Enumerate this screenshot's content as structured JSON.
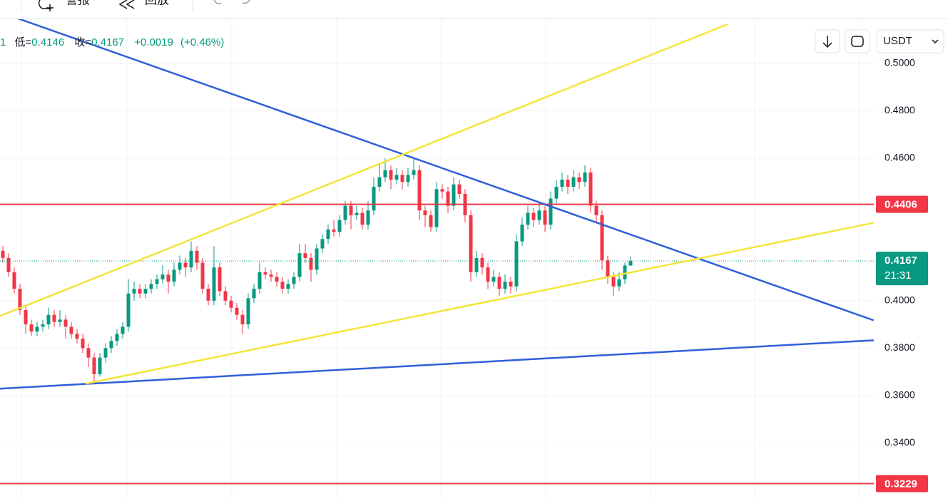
{
  "toolbar": {
    "items": [
      "警报",
      "回放"
    ]
  },
  "ohlc_legend": {
    "prefix": "1",
    "low_label": "低=",
    "low": "0.4146",
    "close_label": "收=",
    "close": "0.4167",
    "change": "+0.0019",
    "change_pct": "(+0.46%)"
  },
  "currency": "USDT",
  "chart_data": {
    "type": "candlestick",
    "up_color": "#089981",
    "down_color": "#f23645",
    "ylim": [
      0.3164,
      0.5186
    ],
    "yticks": [
      {
        "value": 0.5,
        "label": "0.5000"
      },
      {
        "value": 0.48,
        "label": "0.4800"
      },
      {
        "value": 0.46,
        "label": "0.4600"
      },
      {
        "value": 0.4,
        "label": "0.4000"
      },
      {
        "value": 0.38,
        "label": "0.3800"
      },
      {
        "value": 0.36,
        "label": "0.3600"
      },
      {
        "value": 0.34,
        "label": "0.3400"
      }
    ],
    "grid": true,
    "candles": [
      [
        0.421,
        0.423,
        0.416,
        0.418
      ],
      [
        0.418,
        0.42,
        0.41,
        0.412
      ],
      [
        0.412,
        0.414,
        0.403,
        0.405
      ],
      [
        0.405,
        0.407,
        0.394,
        0.396
      ],
      [
        0.396,
        0.398,
        0.386,
        0.39
      ],
      [
        0.39,
        0.392,
        0.385,
        0.387
      ],
      [
        0.387,
        0.391,
        0.385,
        0.389
      ],
      [
        0.389,
        0.392,
        0.387,
        0.39
      ],
      [
        0.39,
        0.397,
        0.388,
        0.394
      ],
      [
        0.394,
        0.396,
        0.389,
        0.391
      ],
      [
        0.391,
        0.396,
        0.389,
        0.392
      ],
      [
        0.392,
        0.394,
        0.384,
        0.389
      ],
      [
        0.389,
        0.391,
        0.384,
        0.386
      ],
      [
        0.386,
        0.388,
        0.382,
        0.384
      ],
      [
        0.384,
        0.386,
        0.378,
        0.38
      ],
      [
        0.38,
        0.382,
        0.372,
        0.376
      ],
      [
        0.376,
        0.378,
        0.366,
        0.369
      ],
      [
        0.369,
        0.378,
        0.368,
        0.376
      ],
      [
        0.376,
        0.382,
        0.374,
        0.38
      ],
      [
        0.38,
        0.385,
        0.378,
        0.383
      ],
      [
        0.383,
        0.388,
        0.381,
        0.386
      ],
      [
        0.386,
        0.391,
        0.384,
        0.389
      ],
      [
        0.389,
        0.409,
        0.387,
        0.403
      ],
      [
        0.403,
        0.408,
        0.4,
        0.405
      ],
      [
        0.405,
        0.407,
        0.401,
        0.403
      ],
      [
        0.403,
        0.407,
        0.401,
        0.405
      ],
      [
        0.405,
        0.409,
        0.403,
        0.407
      ],
      [
        0.407,
        0.411,
        0.405,
        0.409
      ],
      [
        0.409,
        0.415,
        0.407,
        0.411
      ],
      [
        0.411,
        0.413,
        0.403,
        0.408
      ],
      [
        0.408,
        0.416,
        0.406,
        0.413
      ],
      [
        0.413,
        0.419,
        0.411,
        0.416
      ],
      [
        0.416,
        0.418,
        0.41,
        0.414
      ],
      [
        0.414,
        0.425,
        0.412,
        0.421
      ],
      [
        0.421,
        0.423,
        0.413,
        0.416
      ],
      [
        0.416,
        0.418,
        0.403,
        0.405
      ],
      [
        0.405,
        0.407,
        0.398,
        0.4
      ],
      [
        0.4,
        0.423,
        0.398,
        0.414
      ],
      [
        0.414,
        0.416,
        0.402,
        0.404
      ],
      [
        0.404,
        0.406,
        0.398,
        0.4
      ],
      [
        0.4,
        0.402,
        0.395,
        0.397
      ],
      [
        0.397,
        0.399,
        0.392,
        0.394
      ],
      [
        0.394,
        0.396,
        0.386,
        0.39
      ],
      [
        0.39,
        0.403,
        0.388,
        0.401
      ],
      [
        0.401,
        0.407,
        0.399,
        0.405
      ],
      [
        0.405,
        0.416,
        0.403,
        0.412
      ],
      [
        0.412,
        0.414,
        0.409,
        0.411
      ],
      [
        0.411,
        0.413,
        0.408,
        0.41
      ],
      [
        0.41,
        0.412,
        0.406,
        0.408
      ],
      [
        0.408,
        0.41,
        0.403,
        0.405
      ],
      [
        0.405,
        0.409,
        0.403,
        0.407
      ],
      [
        0.407,
        0.412,
        0.405,
        0.41
      ],
      [
        0.41,
        0.424,
        0.408,
        0.42
      ],
      [
        0.42,
        0.424,
        0.416,
        0.418
      ],
      [
        0.418,
        0.42,
        0.408,
        0.413
      ],
      [
        0.413,
        0.424,
        0.411,
        0.422
      ],
      [
        0.422,
        0.428,
        0.42,
        0.426
      ],
      [
        0.426,
        0.432,
        0.424,
        0.43
      ],
      [
        0.43,
        0.434,
        0.427,
        0.429
      ],
      [
        0.429,
        0.436,
        0.427,
        0.434
      ],
      [
        0.434,
        0.442,
        0.432,
        0.44
      ],
      [
        0.44,
        0.442,
        0.43,
        0.436
      ],
      [
        0.436,
        0.44,
        0.434,
        0.437
      ],
      [
        0.437,
        0.439,
        0.43,
        0.432
      ],
      [
        0.432,
        0.442,
        0.43,
        0.438
      ],
      [
        0.438,
        0.452,
        0.436,
        0.448
      ],
      [
        0.448,
        0.458,
        0.446,
        0.452
      ],
      [
        0.452,
        0.46,
        0.45,
        0.455
      ],
      [
        0.455,
        0.457,
        0.447,
        0.451
      ],
      [
        0.451,
        0.456,
        0.449,
        0.453
      ],
      [
        0.453,
        0.455,
        0.447,
        0.45
      ],
      [
        0.45,
        0.456,
        0.448,
        0.453
      ],
      [
        0.453,
        0.46,
        0.451,
        0.455
      ],
      [
        0.455,
        0.457,
        0.434,
        0.438
      ],
      [
        0.438,
        0.44,
        0.431,
        0.436
      ],
      [
        0.436,
        0.438,
        0.429,
        0.431
      ],
      [
        0.431,
        0.45,
        0.429,
        0.447
      ],
      [
        0.447,
        0.449,
        0.443,
        0.446
      ],
      [
        0.446,
        0.448,
        0.437,
        0.44
      ],
      [
        0.44,
        0.452,
        0.438,
        0.449
      ],
      [
        0.449,
        0.451,
        0.443,
        0.445
      ],
      [
        0.445,
        0.447,
        0.433,
        0.436
      ],
      [
        0.436,
        0.438,
        0.408,
        0.412
      ],
      [
        0.412,
        0.421,
        0.41,
        0.418
      ],
      [
        0.418,
        0.42,
        0.411,
        0.414
      ],
      [
        0.414,
        0.416,
        0.405,
        0.408
      ],
      [
        0.408,
        0.413,
        0.406,
        0.41
      ],
      [
        0.41,
        0.412,
        0.402,
        0.405
      ],
      [
        0.405,
        0.411,
        0.403,
        0.408
      ],
      [
        0.408,
        0.41,
        0.403,
        0.406
      ],
      [
        0.406,
        0.428,
        0.404,
        0.425
      ],
      [
        0.425,
        0.435,
        0.423,
        0.432
      ],
      [
        0.432,
        0.44,
        0.43,
        0.437
      ],
      [
        0.437,
        0.439,
        0.431,
        0.434
      ],
      [
        0.434,
        0.441,
        0.432,
        0.438
      ],
      [
        0.438,
        0.44,
        0.429,
        0.432
      ],
      [
        0.432,
        0.446,
        0.43,
        0.443
      ],
      [
        0.443,
        0.451,
        0.441,
        0.448
      ],
      [
        0.448,
        0.454,
        0.446,
        0.451
      ],
      [
        0.451,
        0.453,
        0.445,
        0.448
      ],
      [
        0.448,
        0.455,
        0.446,
        0.452
      ],
      [
        0.452,
        0.454,
        0.447,
        0.45
      ],
      [
        0.45,
        0.457,
        0.448,
        0.454
      ],
      [
        0.454,
        0.456,
        0.437,
        0.44
      ],
      [
        0.44,
        0.442,
        0.433,
        0.436
      ],
      [
        0.436,
        0.438,
        0.413,
        0.417
      ],
      [
        0.417,
        0.419,
        0.407,
        0.41
      ],
      [
        0.41,
        0.412,
        0.402,
        0.406
      ],
      [
        0.406,
        0.412,
        0.404,
        0.409
      ],
      [
        0.409,
        0.416,
        0.407,
        0.4148
      ],
      [
        0.4148,
        0.4185,
        0.4146,
        0.4167
      ]
    ],
    "trendlines": [
      {
        "color": "#2f5fd9",
        "points": [
          [
            -0.5,
            0.5216
          ],
          [
            152.6,
            0.3917
          ]
        ]
      },
      {
        "color": "#2f5fd9",
        "points": [
          [
            -0.5,
            0.3629
          ],
          [
            152.6,
            0.3833
          ]
        ]
      },
      {
        "color": "#f2e63a",
        "points": [
          [
            -0.5,
            0.3935
          ],
          [
            127,
            0.5165
          ]
        ]
      },
      {
        "color": "#f2e63a",
        "points": [
          [
            14.5,
            0.365
          ],
          [
            152.6,
            0.4328
          ]
        ]
      }
    ],
    "price_lines": [
      {
        "value": 0.4406,
        "label": "0.4406",
        "color": "#f23645"
      },
      {
        "value": 0.3229,
        "label": "0.3229",
        "color": "#f23645"
      }
    ],
    "last_price": {
      "value": 0.4167,
      "label": "0.4167",
      "countdown": "21:31",
      "color": "#089981"
    }
  }
}
